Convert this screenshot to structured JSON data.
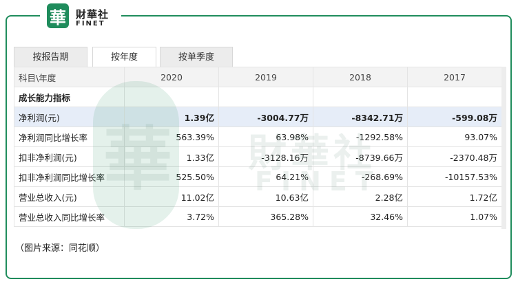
{
  "header": {
    "logo_icon": "華",
    "logo_cn": "財華社",
    "logo_en": "FINET"
  },
  "tabs": [
    "按报告期",
    "按年度",
    "按单季度"
  ],
  "table": {
    "columns": [
      "科目\\年度",
      "2020",
      "2019",
      "2018",
      "2017"
    ],
    "section": "成长能力指标",
    "rows": [
      [
        "净利润(元)",
        "1.39亿",
        "-3004.77万",
        "-8342.71万",
        "-599.08万"
      ],
      [
        "净利润同比增长率",
        "563.39%",
        "63.98%",
        "-1292.58%",
        "93.07%"
      ],
      [
        "扣非净利润(元)",
        "1.33亿",
        "-3128.16万",
        "-8739.66万",
        "-2370.48万"
      ],
      [
        "扣非净利润同比增长率",
        "525.50%",
        "64.21%",
        "-268.69%",
        "-10157.53%"
      ],
      [
        "营业总收入(元)",
        "11.02亿",
        "10.63亿",
        "2.28亿",
        "1.72亿"
      ],
      [
        "营业总收入同比增长率",
        "3.72%",
        "365.28%",
        "32.46%",
        "1.07%"
      ]
    ]
  },
  "caption": "（图片来源：同花顺）"
}
